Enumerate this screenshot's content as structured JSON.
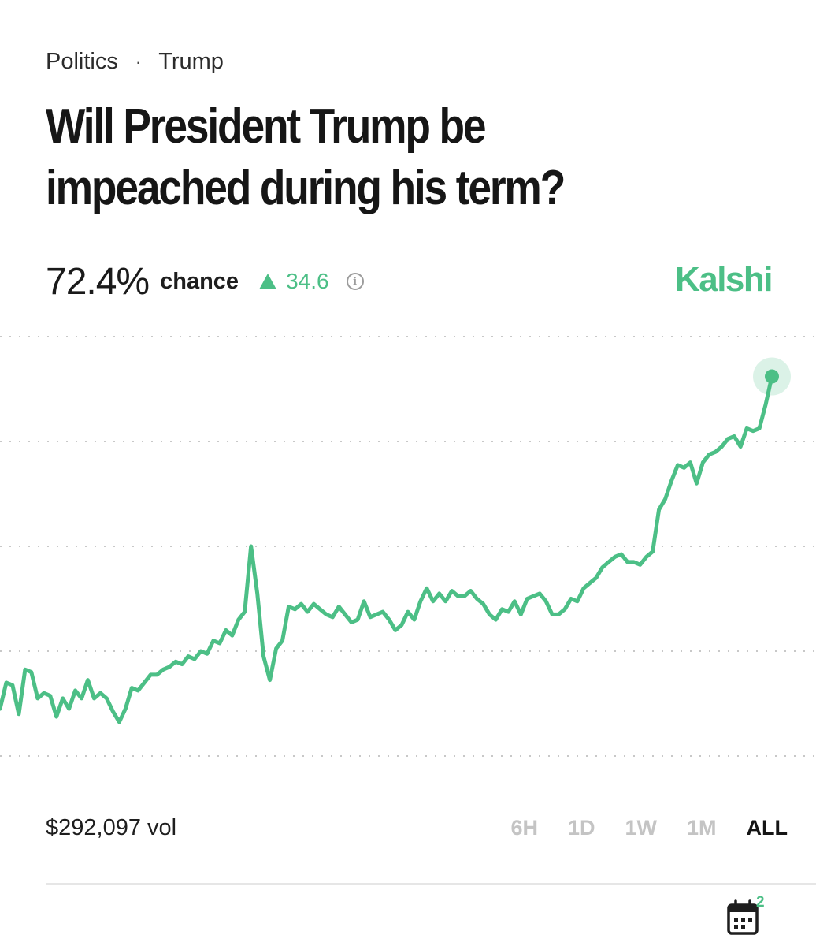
{
  "breadcrumb": {
    "category": "Politics",
    "separator": "·",
    "subcategory": "Trump"
  },
  "market": {
    "title": "Will President Trump be impeached during his term?",
    "chance_value": "72.4%",
    "chance_label": "chance",
    "change": "34.6",
    "change_direction": "up",
    "brand": "Kalshi",
    "volume": "$292,097 vol"
  },
  "time_ranges": [
    {
      "label": "6H",
      "active": false
    },
    {
      "label": "1D",
      "active": false
    },
    {
      "label": "1W",
      "active": false
    },
    {
      "label": "1M",
      "active": false
    },
    {
      "label": "ALL",
      "active": true
    }
  ],
  "calendar": {
    "badge": "2",
    "icon": "calendar-icon"
  },
  "info_icon": "info-icon",
  "colors": {
    "accent": "#4cbf86",
    "text": "#1a1a1a",
    "muted": "#c4c4c4",
    "grid": "#c8c8c8"
  },
  "chart_data": {
    "type": "line",
    "series": [
      {
        "values": [
          9,
          14,
          13.5,
          8,
          16.5,
          16,
          11,
          12,
          11.5,
          7.5,
          11,
          9,
          12.5,
          11,
          14.5,
          11,
          12,
          11,
          8.5,
          6.5,
          9,
          13,
          12.5,
          14,
          15.5,
          15.5,
          16.5,
          17,
          18,
          17.5,
          19,
          18.5,
          20,
          19.5,
          22,
          21.5,
          24,
          23,
          26,
          27.5,
          40,
          31,
          19,
          14.5,
          20.5,
          22,
          28.5,
          28,
          29,
          27.5,
          29,
          28,
          27,
          26.5,
          28.5,
          27,
          25.5,
          26,
          29.5,
          26.5,
          27,
          27.5,
          26,
          24,
          25,
          27.5,
          26,
          29.5,
          32,
          29.5,
          31,
          29.5,
          31.5,
          30.5,
          30.5,
          31.5,
          30,
          29,
          27,
          26,
          28,
          27.5,
          29.5,
          27,
          30,
          30.5,
          31,
          29.5,
          27,
          27,
          28,
          30,
          29.5,
          32,
          33,
          34,
          36,
          37,
          38,
          38.5,
          37,
          37,
          36.5,
          38,
          39,
          47,
          49,
          52.5,
          55.5,
          55,
          56,
          52,
          56,
          57.5,
          58,
          59,
          60.5,
          61,
          59,
          62.5,
          62,
          62.5,
          67,
          72.4
        ]
      }
    ],
    "x_range": "ALL",
    "ylim": [
      0,
      80
    ],
    "gridlines": [
      0,
      20,
      40,
      60,
      80
    ],
    "grid": "dotted horizontal",
    "last_point_marker": true
  }
}
